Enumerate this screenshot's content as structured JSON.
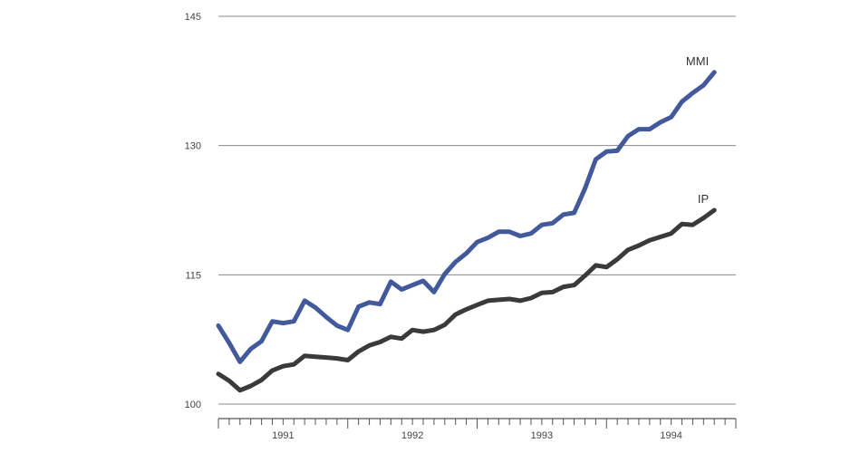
{
  "chart_data": {
    "type": "line",
    "title": "",
    "xlabel": "",
    "ylabel": "",
    "ylim": [
      100,
      145
    ],
    "yticks": [
      100,
      115,
      130,
      145
    ],
    "grid": true,
    "x_labels": [
      "1991",
      "1992",
      "1993",
      "1994"
    ],
    "x": [
      "1990-09",
      "1990-10",
      "1990-11",
      "1990-12",
      "1991-01",
      "1991-02",
      "1991-03",
      "1991-04",
      "1991-05",
      "1991-06",
      "1991-07",
      "1991-08",
      "1991-09",
      "1991-10",
      "1991-11",
      "1991-12",
      "1992-01",
      "1992-02",
      "1992-03",
      "1992-04",
      "1992-05",
      "1992-06",
      "1992-07",
      "1992-08",
      "1992-09",
      "1992-10",
      "1992-11",
      "1992-12",
      "1993-01",
      "1993-02",
      "1993-03",
      "1993-04",
      "1993-05",
      "1993-06",
      "1993-07",
      "1993-08",
      "1993-09",
      "1993-10",
      "1993-11",
      "1993-12",
      "1994-01",
      "1994-02",
      "1994-03",
      "1994-04",
      "1994-05",
      "1994-06",
      "1994-07",
      "1994-08",
      "1994-09"
    ],
    "series": [
      {
        "name": "MMI",
        "color": "#42599b",
        "values": [
          109.1,
          107.1,
          104.9,
          106.4,
          107.3,
          109.6,
          109.4,
          109.6,
          112.0,
          111.2,
          110.1,
          109.1,
          108.6,
          111.3,
          111.8,
          111.6,
          114.2,
          113.3,
          113.8,
          114.3,
          113.0,
          115.1,
          116.5,
          117.5,
          118.8,
          119.3,
          120.0,
          120.0,
          119.5,
          119.8,
          120.8,
          121.0,
          122.0,
          122.2,
          125.0,
          128.4,
          129.3,
          129.4,
          131.1,
          131.9,
          131.9,
          132.7,
          133.3,
          135.1,
          136.1,
          137.0,
          138.5,
          null,
          null
        ]
      },
      {
        "name": "IP",
        "color": "#3a3a3a",
        "values": [
          103.5,
          102.7,
          101.6,
          102.1,
          102.8,
          103.9,
          104.4,
          104.6,
          105.6,
          105.5,
          105.4,
          105.3,
          105.1,
          106.1,
          106.8,
          107.2,
          107.8,
          107.6,
          108.6,
          108.4,
          108.6,
          109.2,
          110.4,
          111.0,
          111.5,
          112.0,
          112.1,
          112.2,
          112.0,
          112.3,
          112.9,
          113.0,
          113.6,
          113.8,
          114.9,
          116.1,
          115.9,
          116.8,
          117.9,
          118.4,
          119.0,
          119.4,
          119.8,
          120.9,
          120.8,
          121.6,
          122.5,
          null,
          null
        ]
      }
    ]
  }
}
